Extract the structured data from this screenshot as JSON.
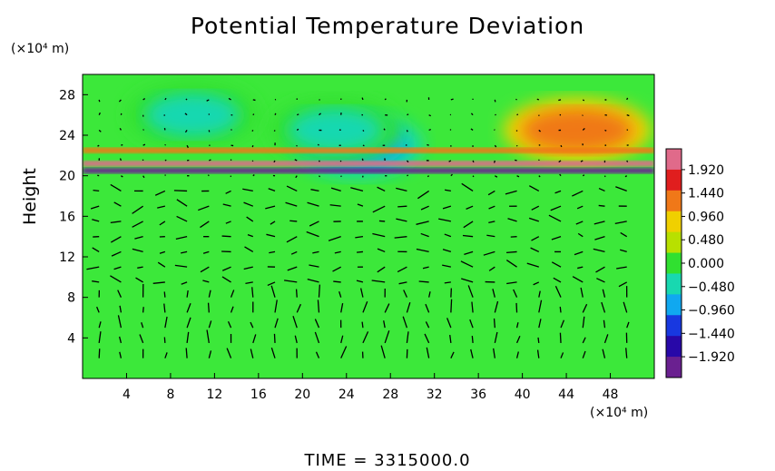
{
  "chart_data": {
    "type": "heatmap",
    "title": "Potential Temperature Deviation",
    "ylabel": "Height",
    "y_unit_label": "(×10⁴ m)",
    "x_unit_label": "(×10⁴ m)",
    "xlim": [
      0,
      52
    ],
    "ylim": [
      0,
      30
    ],
    "x_ticks": [
      "4",
      "8",
      "12",
      "16",
      "20",
      "24",
      "28",
      "32",
      "36",
      "40",
      "44",
      "48"
    ],
    "x_tick_values": [
      4,
      8,
      12,
      16,
      20,
      24,
      28,
      32,
      36,
      40,
      44,
      48
    ],
    "y_ticks": [
      "4",
      "8",
      "12",
      "16",
      "20",
      "24",
      "28"
    ],
    "y_tick_values": [
      4,
      8,
      12,
      16,
      20,
      24,
      28
    ],
    "colorbar": {
      "labels": [
        "1.920",
        "1.440",
        "0.960",
        "0.480",
        "0.000",
        "−0.480",
        "−0.960",
        "−1.440",
        "−1.920"
      ],
      "values": [
        1.92,
        1.44,
        0.96,
        0.48,
        0.0,
        -0.48,
        -0.96,
        -1.44,
        -1.92
      ],
      "colors": [
        "#e06a8a",
        "#e01e1e",
        "#f07818",
        "#f0d000",
        "#b8e000",
        "#30e030",
        "#18d8b0",
        "#10a8f0",
        "#1838e0",
        "#2808a8",
        "#6a2090"
      ]
    },
    "background_value": 0.0,
    "features": [
      {
        "kind": "anomaly",
        "x": 10,
        "y": 26,
        "value": -0.8
      },
      {
        "kind": "anomaly",
        "x": 45,
        "y": 24.5,
        "value": 1.4
      },
      {
        "kind": "anomaly",
        "x": 25,
        "y": 23,
        "value": -1.4
      },
      {
        "kind": "anomaly",
        "x": 23,
        "y": 24.5,
        "value": -0.9
      },
      {
        "kind": "band",
        "y": 20.5,
        "value": -1.92
      },
      {
        "kind": "band",
        "y": 21.2,
        "value": 1.92
      },
      {
        "kind": "band",
        "y": 22.5,
        "value": 1.0
      }
    ],
    "time_label": "TIME  =  3315000.0"
  }
}
